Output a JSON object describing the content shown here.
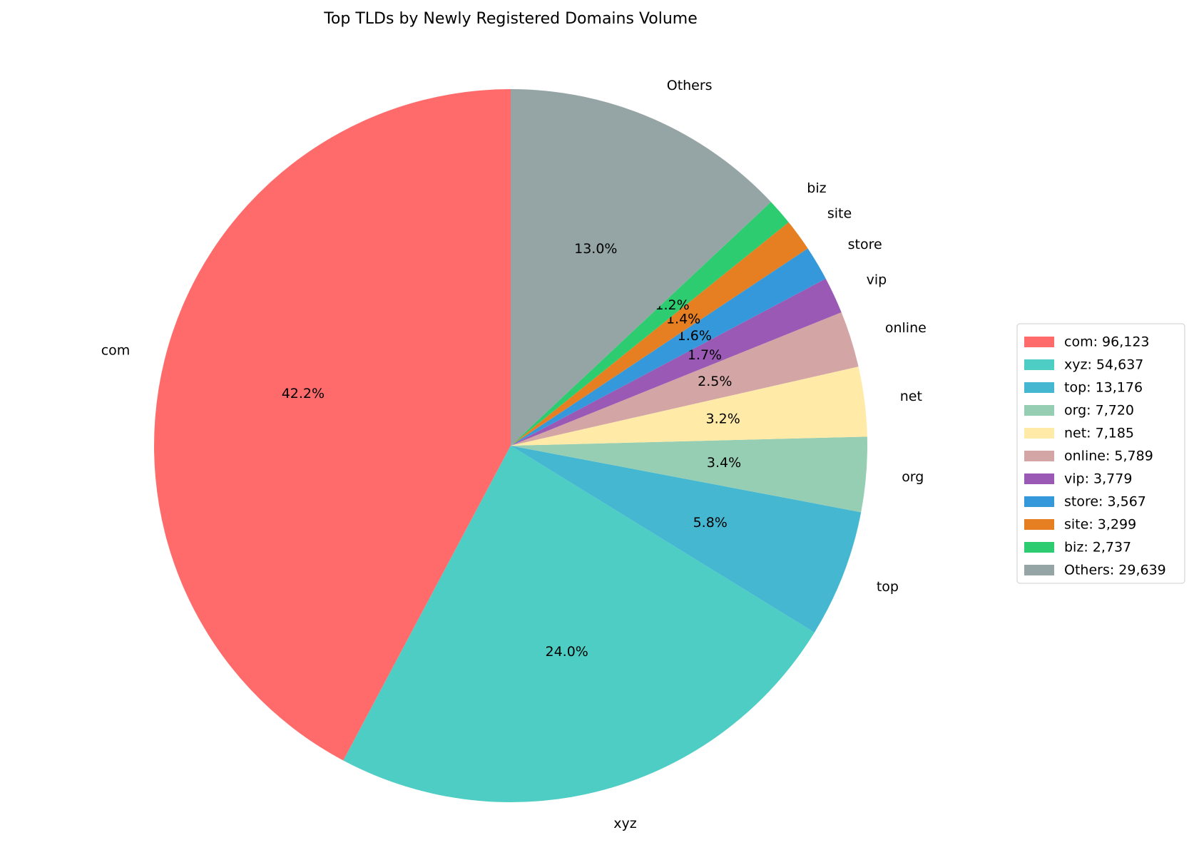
{
  "chart_data": {
    "type": "pie",
    "title": "Top TLDs by Newly Registered Domains Volume",
    "categories": [
      "com",
      "xyz",
      "top",
      "org",
      "net",
      "online",
      "vip",
      "store",
      "site",
      "biz",
      "Others"
    ],
    "values": [
      96123,
      54637,
      13176,
      7720,
      7185,
      5789,
      3779,
      3567,
      3299,
      2737,
      29639
    ],
    "value_labels": [
      "42.2%",
      "24.0%",
      "5.8%",
      "3.4%",
      "3.2%",
      "2.5%",
      "1.7%",
      "1.6%",
      "1.4%",
      "1.2%",
      "13.0%"
    ],
    "legend_labels": [
      "com: 96,123",
      "xyz: 54,637",
      "top: 13,176",
      "org: 7,720",
      "net: 7,185",
      "online: 5,789",
      "vip: 3,779",
      "store: 3,567",
      "site: 3,299",
      "biz: 2,737",
      "Others: 29,639"
    ],
    "colors": [
      "#ff6b6b",
      "#4ecdc4",
      "#45b7d1",
      "#96ceb4",
      "#ffeaa7",
      "#d4a5a5",
      "#9b59b6",
      "#3498db",
      "#e67e22",
      "#2ecc71",
      "#95a5a6"
    ],
    "start_angle": 90,
    "legend": "right"
  }
}
